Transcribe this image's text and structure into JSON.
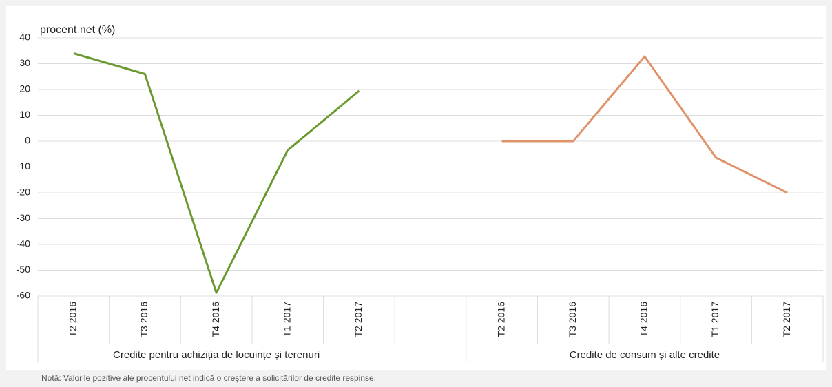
{
  "chart_data": {
    "type": "line",
    "y_label": "procent net (%)",
    "categories": [
      "T2 2016",
      "T3 2016",
      "T4 2016",
      "T1 2017",
      "T2 2017",
      null,
      "T2 2016",
      "T3 2016",
      "T4 2016",
      "T1 2017",
      "T2 2017"
    ],
    "groups": [
      "Credite pentru achiziția de locuințe și terenuri",
      "Credite de consum și alte credite"
    ],
    "series": [
      {
        "color": "#6a9a2f",
        "values": [
          34,
          26,
          -58.7,
          -3.5,
          19.5,
          null,
          null,
          null,
          null,
          null,
          null
        ]
      },
      {
        "color": "#e0936a",
        "values": [
          null,
          null,
          null,
          null,
          null,
          null,
          0,
          0,
          32.8,
          -6.4,
          -20
        ]
      }
    ],
    "ylim": [
      -60,
      40
    ],
    "yticks": [
      -60,
      -50,
      -40,
      -30,
      -20,
      -10,
      0,
      10,
      20,
      30,
      40
    ],
    "grid": true,
    "note": "Notă: Valorile pozitive ale procentului net indică o creștere a solicitărilor de credite respinse."
  }
}
